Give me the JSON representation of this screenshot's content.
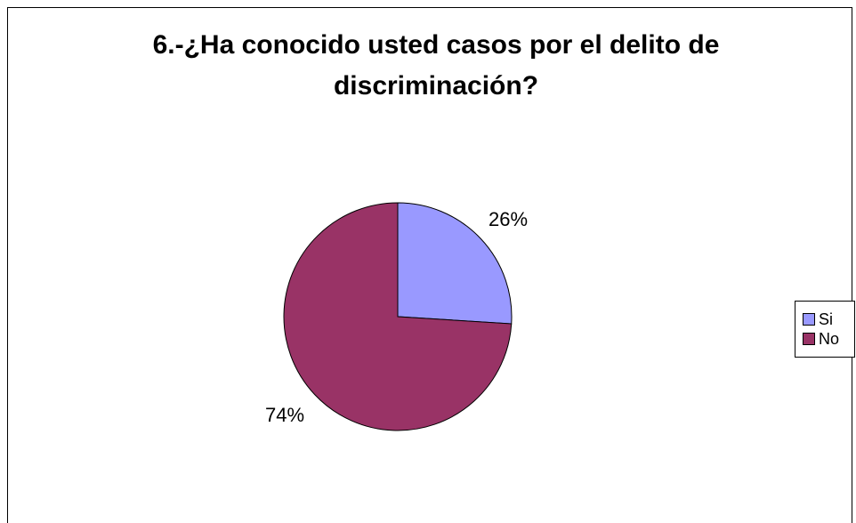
{
  "chart_data": {
    "type": "pie",
    "title_lines": [
      "6.-¿Ha conocido usted casos por el delito de",
      "discriminación?"
    ],
    "categories": [
      "Si",
      "No"
    ],
    "values": [
      26,
      74
    ],
    "labels": [
      "26%",
      "74%"
    ],
    "colors": [
      "#9999ff",
      "#993366"
    ],
    "legend_position": "right"
  }
}
